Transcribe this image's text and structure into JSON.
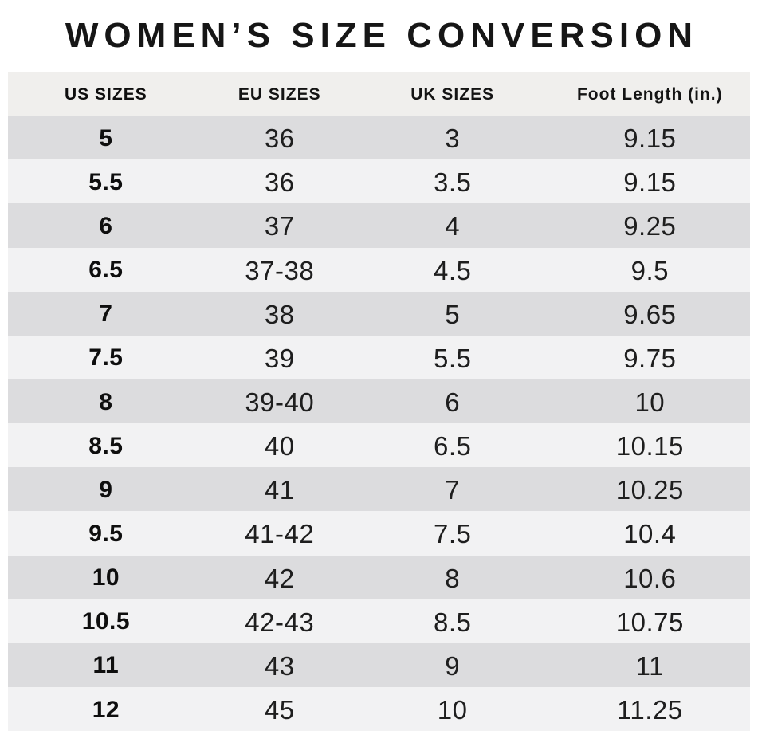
{
  "chart_data": {
    "type": "table",
    "title": "WOMEN’S SIZE CONVERSION",
    "columns": [
      "US SIZES",
      "EU SIZES",
      "UK SIZES",
      "Foot Length (in.)"
    ],
    "rows": [
      [
        "5",
        "36",
        "3",
        "9.15"
      ],
      [
        "5.5",
        "36",
        "3.5",
        "9.15"
      ],
      [
        "6",
        "37",
        "4",
        "9.25"
      ],
      [
        "6.5",
        "37-38",
        "4.5",
        "9.5"
      ],
      [
        "7",
        "38",
        "5",
        "9.65"
      ],
      [
        "7.5",
        "39",
        "5.5",
        "9.75"
      ],
      [
        "8",
        "39-40",
        "6",
        "10"
      ],
      [
        "8.5",
        "40",
        "6.5",
        "10.15"
      ],
      [
        "9",
        "41",
        "7",
        "10.25"
      ],
      [
        "9.5",
        "41-42",
        "7.5",
        "10.4"
      ],
      [
        "10",
        "42",
        "8",
        "10.6"
      ],
      [
        "10.5",
        "42-43",
        "8.5",
        "10.75"
      ],
      [
        "11",
        "43",
        "9",
        "11"
      ],
      [
        "12",
        "45",
        "10",
        "11.25"
      ]
    ]
  },
  "colors": {
    "background": "#ffffff",
    "header_bg": "#f0efed",
    "row_dark": "#dcdcde",
    "row_light": "#f2f2f3",
    "text": "#1b1b1b"
  }
}
